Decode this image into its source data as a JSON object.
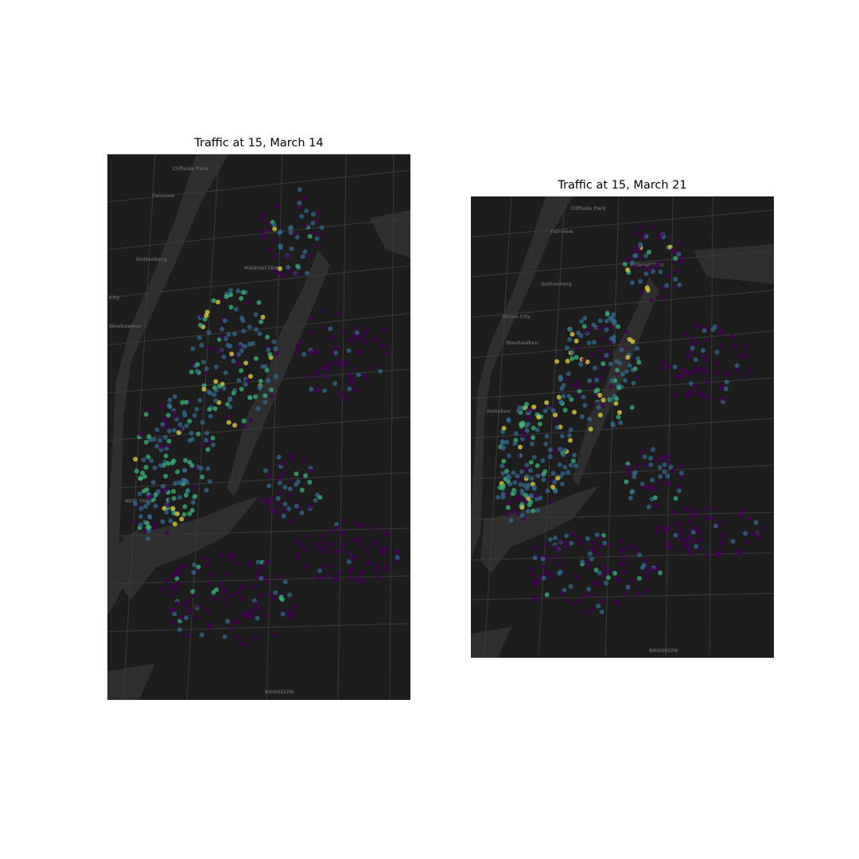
{
  "figure": {
    "panels": [
      {
        "title": "Traffic at 15, March 14",
        "map_labels": [
          "Cliffside Park",
          "Fairview",
          "Guttenberg",
          "City",
          "Weehawken",
          "NEW YORK",
          "MANHATTAN",
          "BROOKLYN"
        ]
      },
      {
        "title": "Traffic at 15, March 21",
        "map_labels": [
          "Cliffside Park",
          "Fairview",
          "Guttenberg",
          "Union City",
          "Weehawken",
          "Hoboken",
          "MANHATTAN",
          "BROOKLYN"
        ]
      }
    ]
  },
  "map": {
    "basemap_style": "dark",
    "colormap": "viridis",
    "colors": {
      "land": "#1d1d1d",
      "water": "#2f2f2f",
      "roads": "#3a3a3a",
      "low": "#440154",
      "mid": "#31688e",
      "high": "#35b779",
      "max": "#e7d53a"
    }
  }
}
